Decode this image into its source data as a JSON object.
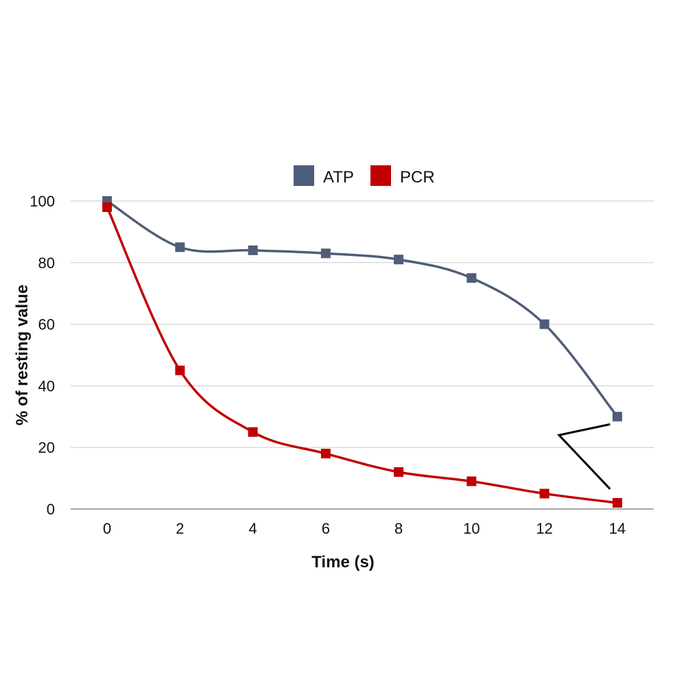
{
  "chart_data": {
    "type": "line",
    "title": "",
    "xlabel": "Time (s)",
    "ylabel": "% of resting value",
    "x": [
      0,
      2,
      4,
      6,
      8,
      10,
      12,
      14
    ],
    "xlim": [
      -1,
      15
    ],
    "ylim": [
      0,
      100
    ],
    "xticks": [
      0,
      2,
      4,
      6,
      8,
      10,
      12,
      14
    ],
    "yticks": [
      0,
      20,
      40,
      60,
      80,
      100
    ],
    "grid": "horizontal",
    "legend_position": "top-center",
    "smooth": true,
    "series": [
      {
        "name": "ATP",
        "color": "#4f5d78",
        "values": [
          100,
          85,
          84,
          83,
          81,
          75,
          60,
          30
        ]
      },
      {
        "name": "PCR",
        "color": "#c00000",
        "values": [
          98,
          45,
          25,
          18,
          12,
          9,
          5,
          2
        ]
      }
    ],
    "annotations": [
      {
        "type": "bracket-line",
        "color": "#000000",
        "points": [
          [
            13.8,
            27.5
          ],
          [
            12.4,
            24
          ],
          [
            13.8,
            6.5
          ]
        ]
      }
    ]
  }
}
